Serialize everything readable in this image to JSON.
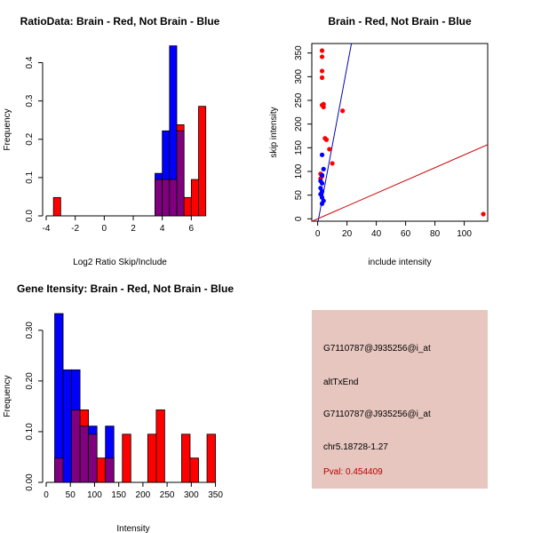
{
  "colors": {
    "red": "#ff0000",
    "blue": "#0000ff",
    "purple": "#800080",
    "regression_line": "#0000aa",
    "reference_line": "#cc0000",
    "panel_bg": "#e6c6be",
    "pval_text": "#b80000"
  },
  "chart_data": [
    {
      "id": "ratio",
      "type": "bar",
      "subtype": "overlaid-histogram",
      "title": "RatioData: Brain - Red, Not Brain - Blue",
      "xlabel": "Log2 Ratio Skip/Include",
      "ylabel": "Frequency",
      "xlim": [
        -4,
        8
      ],
      "ylim": [
        0,
        0.45
      ],
      "xticks": [
        -4,
        -2,
        0,
        2,
        4,
        6
      ],
      "yticks": [
        0.0,
        0.1,
        0.2,
        0.3,
        0.4
      ],
      "yticklabels": [
        "0.0",
        "0.1",
        "0.2",
        "0.3",
        "0.4"
      ],
      "bin_width": 0.5,
      "series": [
        {
          "name": "Brain",
          "color": "red",
          "bins": [
            [
              -3.5,
              0.048
            ],
            [
              3.5,
              0.095
            ],
            [
              4.0,
              0.095
            ],
            [
              4.5,
              0.095
            ],
            [
              5.0,
              0.238
            ],
            [
              5.5,
              0.048
            ],
            [
              6.0,
              0.095
            ],
            [
              6.5,
              0.286
            ]
          ]
        },
        {
          "name": "Not Brain",
          "color": "blue",
          "bins": [
            [
              3.5,
              0.111
            ],
            [
              4.0,
              0.222
            ],
            [
              4.5,
              0.444
            ],
            [
              5.0,
              0.222
            ]
          ]
        }
      ]
    },
    {
      "id": "scatter",
      "type": "scatter",
      "title": "Brain - Red, Not Brain - Blue",
      "xlabel": "include intensity",
      "ylabel": "skip intensity",
      "xlim": [
        -4,
        116
      ],
      "ylim": [
        -5,
        370
      ],
      "xticks": [
        0,
        20,
        40,
        60,
        80,
        100
      ],
      "yticks": [
        0,
        50,
        100,
        150,
        200,
        250,
        300,
        350
      ],
      "series": [
        {
          "name": "Brain",
          "color": "red",
          "points": [
            [
              3,
              355
            ],
            [
              3,
              342
            ],
            [
              3,
              312
            ],
            [
              3,
              298
            ],
            [
              3,
              240
            ],
            [
              4,
              236
            ],
            [
              4,
              242
            ],
            [
              5,
              170
            ],
            [
              6,
              167
            ],
            [
              8,
              147
            ],
            [
              10,
              117
            ],
            [
              17,
              228
            ],
            [
              2,
              95
            ],
            [
              3,
              90
            ],
            [
              2,
              85
            ],
            [
              113,
              10
            ]
          ]
        },
        {
          "name": "Not Brain",
          "color": "blue",
          "points": [
            [
              3,
              135
            ],
            [
              4,
              105
            ],
            [
              3,
              92
            ],
            [
              2,
              80
            ],
            [
              3,
              75
            ],
            [
              2,
              65
            ],
            [
              3,
              58
            ],
            [
              2,
              52
            ],
            [
              3,
              45
            ],
            [
              4,
              38
            ],
            [
              3,
              32
            ]
          ]
        }
      ],
      "lines": [
        {
          "name": "fit",
          "color": "regression_line",
          "intercept": -10,
          "slope": 16.5
        },
        {
          "name": "reference",
          "color": "reference_line",
          "intercept": 0,
          "slope": 1.35
        }
      ]
    },
    {
      "id": "gene",
      "type": "bar",
      "subtype": "overlaid-histogram",
      "title": "Gene Itensity: Brain - Red, Not Brain - Blue",
      "xlabel": "Intensity",
      "ylabel": "Frequency",
      "xlim": [
        0,
        360
      ],
      "ylim": [
        0,
        0.34
      ],
      "xticks": [
        0,
        50,
        100,
        150,
        200,
        250,
        300,
        350
      ],
      "yticks": [
        0.0,
        0.1,
        0.2,
        0.3
      ],
      "yticklabels": [
        "0.00",
        "0.10",
        "0.20",
        "0.30"
      ],
      "bin_width": 17.5,
      "series": [
        {
          "name": "Brain",
          "color": "red",
          "bins": [
            [
              17.5,
              0.048
            ],
            [
              52.5,
              0.143
            ],
            [
              70,
              0.143
            ],
            [
              87.5,
              0.095
            ],
            [
              105,
              0.048
            ],
            [
              122.5,
              0.048
            ],
            [
              157.5,
              0.095
            ],
            [
              210,
              0.095
            ],
            [
              227.5,
              0.143
            ],
            [
              280,
              0.095
            ],
            [
              297.5,
              0.048
            ],
            [
              332.5,
              0.095
            ]
          ]
        },
        {
          "name": "Not Brain",
          "color": "blue",
          "bins": [
            [
              17.5,
              0.333
            ],
            [
              35,
              0.222
            ],
            [
              52.5,
              0.222
            ],
            [
              70,
              0.111
            ],
            [
              87.5,
              0.111
            ],
            [
              122.5,
              0.111
            ]
          ]
        }
      ]
    }
  ],
  "info": {
    "probe": "G7110787@J935256@i_at",
    "event": "altTxEnd",
    "probe2": "G7110787@J935256@i_at",
    "location": "chr5.18728-1.27",
    "pval": "Pval: 0.454409"
  }
}
